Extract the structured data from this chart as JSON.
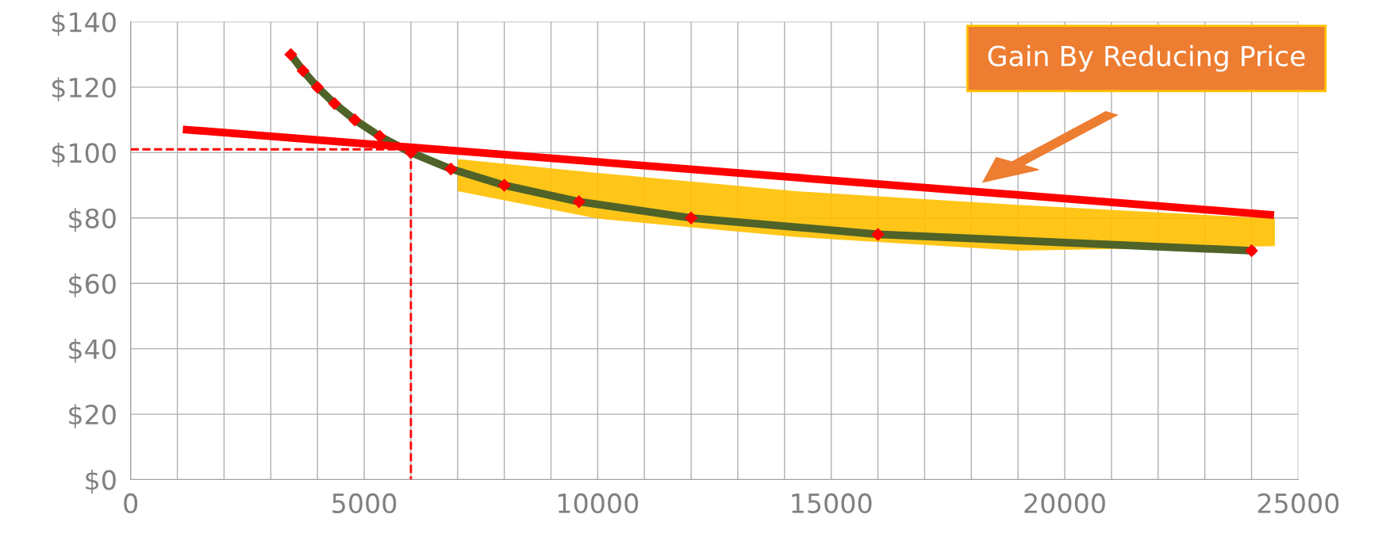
{
  "chart_data": {
    "type": "line",
    "series": [
      {
        "color": "#4f6228",
        "marker": "none",
        "x": [
          3429,
          3692,
          4000,
          4364,
          4800,
          5333,
          6000,
          6857,
          8000,
          9600,
          12000,
          16000,
          24000
        ],
        "values": [
          130,
          125,
          120,
          115,
          110,
          105,
          100,
          95,
          90,
          85,
          80,
          75,
          70
        ]
      },
      {
        "type": "scatter",
        "color": "#ff0000",
        "marker": "diamond",
        "x": [
          3429,
          3692,
          4000,
          4364,
          4800,
          5333,
          6000,
          6857,
          8000,
          9600,
          12000,
          16000,
          24000
        ],
        "values": [
          130,
          125,
          120,
          115,
          110,
          105,
          100,
          95,
          90,
          85,
          80,
          75,
          70
        ]
      },
      {
        "color": "#ff0000",
        "marker": "none",
        "x": [
          1200,
          24400
        ],
        "values": [
          107,
          81
        ]
      },
      {
        "color": "#ff0000",
        "marker": "none",
        "line_style": "dashed",
        "x": [
          0,
          6000,
          6000
        ],
        "values": [
          101,
          101,
          0
        ]
      }
    ],
    "annotations": [
      "Gain By Reducing Price"
    ],
    "xlim": [
      0,
      25000
    ],
    "xticks": [
      0,
      {
        "value": 1000,
        "label": null
      },
      {
        "value": 2000,
        "label": null
      },
      {
        "value": 3000,
        "label": null
      },
      {
        "value": 4000,
        "label": null
      },
      5000,
      {
        "value": 6000,
        "label": null
      },
      {
        "value": 7000,
        "label": null
      },
      {
        "value": 8000,
        "label": null
      },
      {
        "value": 9000,
        "label": null
      },
      10000,
      {
        "value": 11000,
        "label": null
      },
      {
        "value": 12000,
        "label": null
      },
      {
        "value": 13000,
        "label": null
      },
      {
        "value": 14000,
        "label": null
      },
      15000,
      {
        "value": 16000,
        "label": null
      },
      {
        "value": 17000,
        "label": null
      },
      {
        "value": 18000,
        "label": null
      },
      {
        "value": 19000,
        "label": null
      },
      20000,
      {
        "value": 21000,
        "label": null
      },
      {
        "value": 22000,
        "label": null
      },
      {
        "value": 23000,
        "label": null
      },
      {
        "value": 24000,
        "label": null
      },
      25000
    ],
    "ylim": [
      0,
      140
    ],
    "yticks": [
      {
        "value": 0,
        "label": "$0"
      },
      {
        "value": 20,
        "label": "$20"
      },
      {
        "value": 40,
        "label": "$40"
      },
      {
        "value": 60,
        "label": "$60"
      },
      {
        "value": 80,
        "label": "$80"
      },
      {
        "value": 100,
        "label": "$100"
      },
      {
        "value": 120,
        "label": "$120"
      },
      {
        "value": 140,
        "label": "$140"
      }
    ],
    "grid": true
  }
}
